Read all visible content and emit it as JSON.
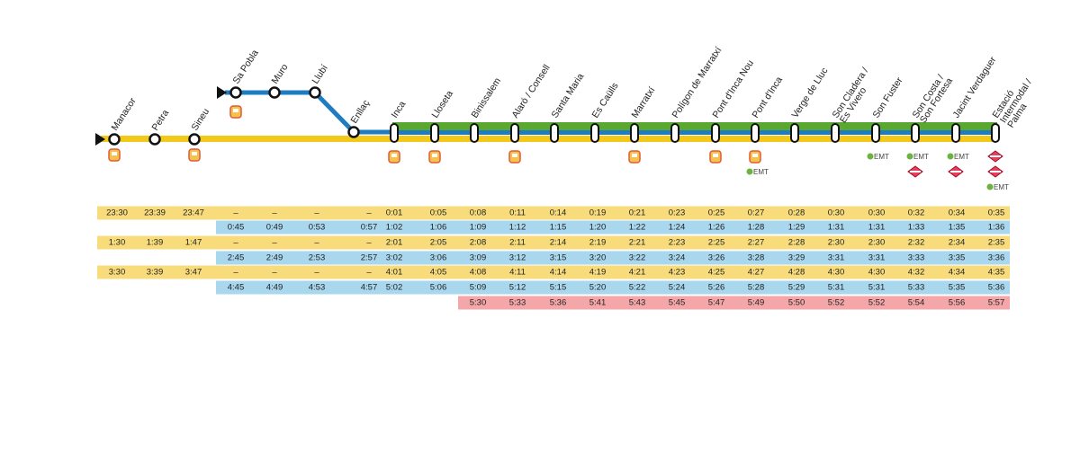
{
  "emt_text": "EMT",
  "stations": [
    {
      "name": [
        "Manacor"
      ],
      "services": [
        "bus"
      ]
    },
    {
      "name": [
        "Petra"
      ],
      "services": []
    },
    {
      "name": [
        "Sineu"
      ],
      "services": [
        "bus"
      ]
    },
    {
      "name": [
        "Sa Pobla"
      ],
      "services": [
        "bus"
      ]
    },
    {
      "name": [
        "Muro"
      ],
      "services": []
    },
    {
      "name": [
        "Llubí"
      ],
      "services": []
    },
    {
      "name": [
        "Enllaç"
      ],
      "services": []
    },
    {
      "name": [
        "Inca"
      ],
      "services": [
        "bus"
      ]
    },
    {
      "name": [
        "Lloseta"
      ],
      "services": [
        "bus"
      ]
    },
    {
      "name": [
        "Binissalem"
      ],
      "services": []
    },
    {
      "name": [
        "Alaró / Consell"
      ],
      "services": [
        "bus"
      ]
    },
    {
      "name": [
        "Santa Maria"
      ],
      "services": []
    },
    {
      "name": [
        "Es Caülls"
      ],
      "services": []
    },
    {
      "name": [
        "Marratxí"
      ],
      "services": [
        "bus"
      ]
    },
    {
      "name": [
        "Polígon de Marratxí"
      ],
      "services": []
    },
    {
      "name": [
        "Pont d'Inca Nou"
      ],
      "services": [
        "bus"
      ]
    },
    {
      "name": [
        "Pont d'Inca"
      ],
      "services": [
        "bus",
        "emt"
      ]
    },
    {
      "name": [
        "Verge de Lluc"
      ],
      "services": []
    },
    {
      "name": [
        "Son Cladera /",
        "Es Vivero"
      ],
      "services": []
    },
    {
      "name": [
        "Son Fuster"
      ],
      "services": [
        "emt"
      ]
    },
    {
      "name": [
        "Son Costa /",
        "Son Fortesa"
      ],
      "services": [
        "emt",
        "metro"
      ]
    },
    {
      "name": [
        "Jacint Verdaguer"
      ],
      "services": [
        "emt",
        "metro"
      ]
    },
    {
      "name": [
        "Estació",
        "Intermodal /",
        "Palma"
      ],
      "services": [
        "metro",
        "metro",
        "emt"
      ]
    }
  ],
  "rows": [
    {
      "color": "#f8dc7c",
      "times": [
        "23:30",
        "23:39",
        "23:47",
        "–",
        "–",
        "–",
        "–",
        "0:01",
        "0:05",
        "0:08",
        "0:11",
        "0:14",
        "0:19",
        "0:21",
        "0:23",
        "0:25",
        "0:27",
        "0:28",
        "0:30",
        "0:30",
        "0:32",
        "0:34",
        "0:35"
      ]
    },
    {
      "color": "#a8d7ee",
      "times": [
        null,
        null,
        null,
        "0:45",
        "0:49",
        "0:53",
        "0:57",
        "1:02",
        "1:06",
        "1:09",
        "1:12",
        "1:15",
        "1:20",
        "1:22",
        "1:24",
        "1:26",
        "1:28",
        "1:29",
        "1:31",
        "1:31",
        "1:33",
        "1:35",
        "1:36"
      ]
    },
    {
      "color": "#f8dc7c",
      "times": [
        "1:30",
        "1:39",
        "1:47",
        "–",
        "–",
        "–",
        "–",
        "2:01",
        "2:05",
        "2:08",
        "2:11",
        "2:14",
        "2:19",
        "2:21",
        "2:23",
        "2:25",
        "2:27",
        "2:28",
        "2:30",
        "2:30",
        "2:32",
        "2:34",
        "2:35"
      ]
    },
    {
      "color": "#a8d7ee",
      "times": [
        null,
        null,
        null,
        "2:45",
        "2:49",
        "2:53",
        "2:57",
        "3:02",
        "3:06",
        "3:09",
        "3:12",
        "3:15",
        "3:20",
        "3:22",
        "3:24",
        "3:26",
        "3:28",
        "3:29",
        "3:31",
        "3:31",
        "3:33",
        "3:35",
        "3:36"
      ]
    },
    {
      "color": "#f8dc7c",
      "times": [
        "3:30",
        "3:39",
        "3:47",
        "–",
        "–",
        "–",
        "–",
        "4:01",
        "4:05",
        "4:08",
        "4:11",
        "4:14",
        "4:19",
        "4:21",
        "4:23",
        "4:25",
        "4:27",
        "4:28",
        "4:30",
        "4:30",
        "4:32",
        "4:34",
        "4:35"
      ]
    },
    {
      "color": "#a8d7ee",
      "times": [
        null,
        null,
        null,
        "4:45",
        "4:49",
        "4:53",
        "4:57",
        "5:02",
        "5:06",
        "5:09",
        "5:12",
        "5:15",
        "5:20",
        "5:22",
        "5:24",
        "5:26",
        "5:28",
        "5:29",
        "5:31",
        "5:31",
        "5:33",
        "5:35",
        "5:36"
      ]
    },
    {
      "color": "#f4a6a8",
      "times": [
        null,
        null,
        null,
        null,
        null,
        null,
        null,
        null,
        null,
        "5:30",
        "5:33",
        "5:36",
        "5:41",
        "5:43",
        "5:45",
        "5:47",
        "5:49",
        "5:50",
        "5:52",
        "5:52",
        "5:54",
        "5:56",
        "5:57"
      ]
    }
  ]
}
